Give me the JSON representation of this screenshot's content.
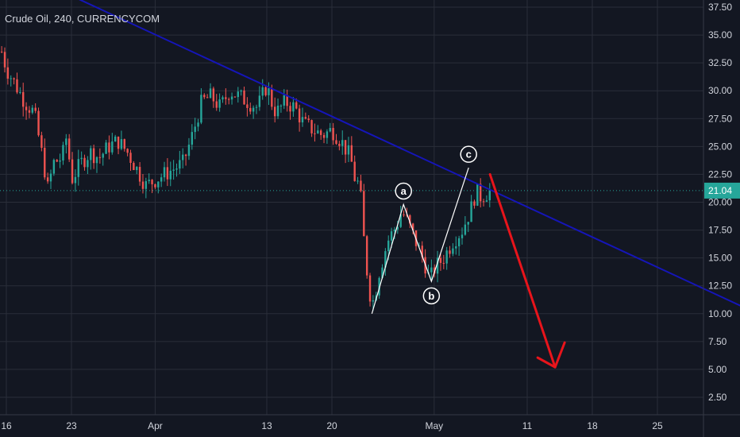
{
  "chart_data": {
    "type": "candlestick",
    "title": "Crude Oil, 240, CURRENCYCOM",
    "ylim": [
      0.5,
      38.5
    ],
    "y_ticks": [
      "37.50",
      "35.00",
      "32.50",
      "30.00",
      "27.50",
      "25.00",
      "22.50",
      "20.00",
      "17.50",
      "15.00",
      "12.50",
      "10.00",
      "7.50",
      "5.00",
      "2.50"
    ],
    "x_ticks": [
      "16",
      "23",
      "Apr",
      "13",
      "20",
      "May",
      "11",
      "18",
      "25"
    ],
    "x_tick_days": [
      0,
      7,
      16,
      28,
      35,
      46,
      56,
      63,
      70
    ],
    "x_range_days": [
      0,
      80
    ],
    "grid": true,
    "colors": {
      "background": "#131722",
      "grid": "#2a2e39",
      "up": "#26a69a",
      "down": "#ef5350",
      "trendline": "#1515b8",
      "projection": "#e8141b",
      "wave_lines": "#ffffff",
      "price_line": "#26a69a",
      "price_tag": "#26a69a",
      "axis_text": "#d1d4dc"
    },
    "last_price": "21.04",
    "price_path": [
      {
        "d": -0.5,
        "p": 33.5
      },
      {
        "d": 0,
        "p": 32.0
      },
      {
        "d": 1,
        "p": 30.5
      },
      {
        "d": 2,
        "p": 29.0
      },
      {
        "d": 3,
        "p": 28.0
      },
      {
        "d": 4,
        "p": 23.5
      },
      {
        "d": 4.5,
        "p": 21.0
      },
      {
        "d": 5,
        "p": 23.5
      },
      {
        "d": 6,
        "p": 24.0
      },
      {
        "d": 6.5,
        "p": 26.0
      },
      {
        "d": 7,
        "p": 22.0
      },
      {
        "d": 8,
        "p": 23.5
      },
      {
        "d": 9,
        "p": 24.5
      },
      {
        "d": 10,
        "p": 24.0
      },
      {
        "d": 11,
        "p": 25.0
      },
      {
        "d": 12,
        "p": 25.5
      },
      {
        "d": 13,
        "p": 24.5
      },
      {
        "d": 14,
        "p": 23.0
      },
      {
        "d": 15,
        "p": 21.5
      },
      {
        "d": 16,
        "p": 22.0
      },
      {
        "d": 17,
        "p": 22.5
      },
      {
        "d": 18,
        "p": 23.0
      },
      {
        "d": 19,
        "p": 23.5
      },
      {
        "d": 20,
        "p": 26.0
      },
      {
        "d": 21,
        "p": 29.0
      },
      {
        "d": 22,
        "p": 29.5
      },
      {
        "d": 23,
        "p": 28.5
      },
      {
        "d": 24,
        "p": 30.0
      },
      {
        "d": 25,
        "p": 29.5
      },
      {
        "d": 26,
        "p": 29.0
      },
      {
        "d": 27,
        "p": 28.5
      },
      {
        "d": 28,
        "p": 30.5
      },
      {
        "d": 28.5,
        "p": 29.0
      },
      {
        "d": 29,
        "p": 28.0
      },
      {
        "d": 30,
        "p": 29.0
      },
      {
        "d": 31,
        "p": 28.5
      },
      {
        "d": 32,
        "p": 27.0
      },
      {
        "d": 33,
        "p": 26.5
      },
      {
        "d": 34,
        "p": 26.0
      },
      {
        "d": 35,
        "p": 26.5
      },
      {
        "d": 36,
        "p": 25.5
      },
      {
        "d": 37,
        "p": 24.0
      },
      {
        "d": 37.5,
        "p": 22.0
      },
      {
        "d": 38,
        "p": 21.5
      },
      {
        "d": 38.5,
        "p": 16.0
      },
      {
        "d": 39,
        "p": 12.0
      },
      {
        "d": 39.5,
        "p": 11.0
      },
      {
        "d": 40,
        "p": 13.5
      },
      {
        "d": 41,
        "p": 16.5
      },
      {
        "d": 42,
        "p": 18.0
      },
      {
        "d": 42.5,
        "p": 19.2
      },
      {
        "d": 43,
        "p": 18.5
      },
      {
        "d": 44,
        "p": 16.5
      },
      {
        "d": 45,
        "p": 14.5
      },
      {
        "d": 45.5,
        "p": 13.0
      },
      {
        "d": 46,
        "p": 14.0
      },
      {
        "d": 47,
        "p": 15.0
      },
      {
        "d": 48,
        "p": 16.5
      },
      {
        "d": 49,
        "p": 17.5
      },
      {
        "d": 50,
        "p": 19.5
      },
      {
        "d": 50.5,
        "p": 21.0
      },
      {
        "d": 51,
        "p": 20.5
      },
      {
        "d": 52,
        "p": 21.0
      }
    ],
    "trendline": [
      {
        "d": -2,
        "p": 42.0
      },
      {
        "d": 80,
        "p": 10.3
      }
    ],
    "wave_path": [
      {
        "d": 39.3,
        "p": 10.0
      },
      {
        "d": 42.7,
        "p": 19.8
      },
      {
        "d": 45.7,
        "p": 12.9
      },
      {
        "d": 49.7,
        "p": 23.1
      }
    ],
    "wave_labels": [
      {
        "text": "a",
        "d": 42.7,
        "p": 21.0
      },
      {
        "text": "b",
        "d": 45.7,
        "p": 11.6
      },
      {
        "text": "c",
        "d": 49.7,
        "p": 24.3
      }
    ],
    "projection": [
      {
        "d": 52.0,
        "p": 22.5
      },
      {
        "d": 59.0,
        "p": 5.2
      }
    ]
  }
}
